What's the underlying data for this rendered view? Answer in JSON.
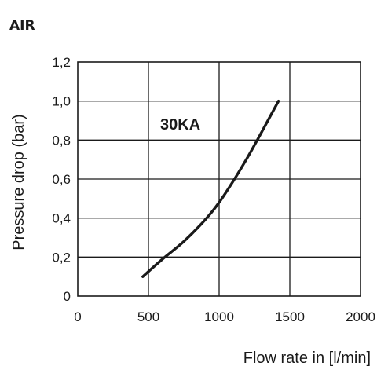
{
  "chart_data": {
    "type": "line",
    "heading": "AIR",
    "xlabel": "Flow rate in [l/min]",
    "ylabel": "Pressure drop (bar)",
    "xlim": [
      0,
      2000
    ],
    "ylim": [
      0,
      1.2
    ],
    "x_ticks": [
      0,
      500,
      1000,
      1500,
      2000
    ],
    "x_tick_labels": [
      "0",
      "500",
      "1000",
      "1500",
      "2000"
    ],
    "y_ticks": [
      0,
      0.2,
      0.4,
      0.6,
      0.8,
      1.0,
      1.2
    ],
    "y_tick_labels": [
      "0",
      "0,2",
      "0,4",
      "0,6",
      "0,8",
      "1,0",
      "1,2"
    ],
    "grid": true,
    "annotation": "30KA",
    "series": [
      {
        "name": "30KA",
        "color": "#1a1a1a",
        "x": [
          460,
          600,
          750,
          900,
          1000,
          1100,
          1200,
          1300,
          1420
        ],
        "y": [
          0.1,
          0.19,
          0.28,
          0.39,
          0.48,
          0.59,
          0.71,
          0.84,
          1.0
        ]
      }
    ]
  }
}
